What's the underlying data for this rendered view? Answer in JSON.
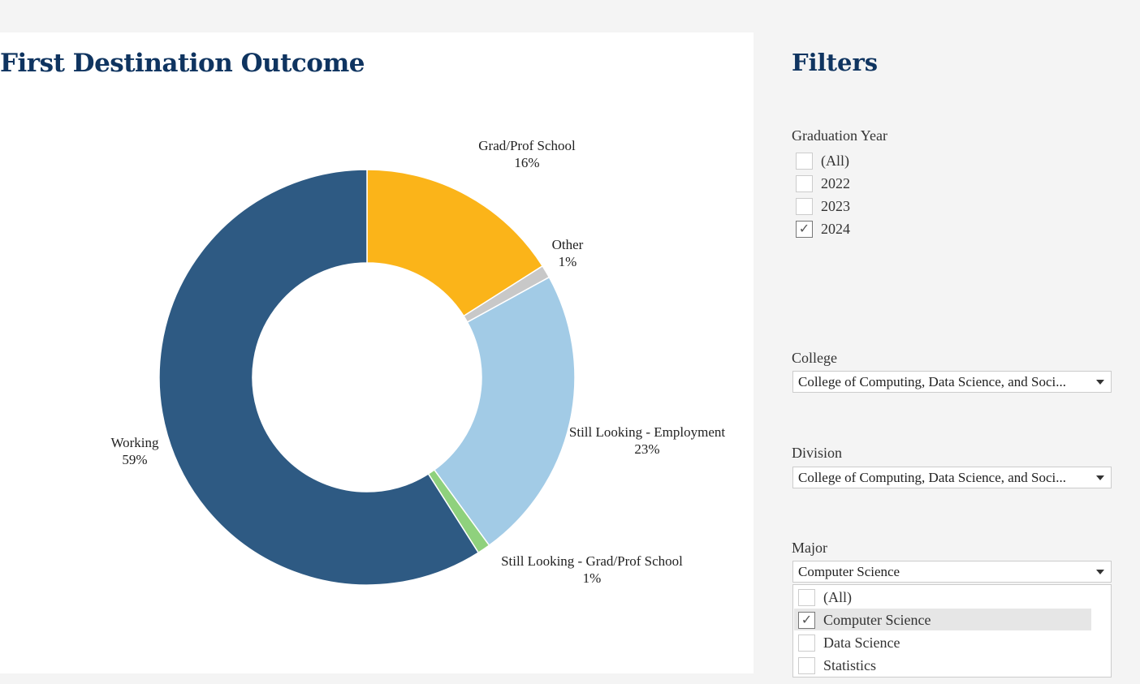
{
  "chart_data": {
    "type": "pie",
    "title": "First Destination Outcome",
    "donut": true,
    "slices": [
      {
        "label": "Grad/Prof School",
        "value": 16,
        "value_label": "16%",
        "color": "#fbb419"
      },
      {
        "label": "Other",
        "value": 1,
        "value_label": "1%",
        "color": "#c8c8c8"
      },
      {
        "label": "Still Looking - Employment",
        "value": 23,
        "value_label": "23%",
        "color": "#a2cbe6"
      },
      {
        "label": "Still Looking - Grad/Prof School",
        "value": 1,
        "value_label": "1%",
        "color": "#8fd17d"
      },
      {
        "label": "Working",
        "value": 59,
        "value_label": "59%",
        "color": "#2e5a83"
      }
    ]
  },
  "filters": {
    "title": "Filters",
    "graduation_year": {
      "label": "Graduation Year",
      "options": [
        {
          "label": "(All)",
          "checked": false
        },
        {
          "label": "2022",
          "checked": false
        },
        {
          "label": "2023",
          "checked": false
        },
        {
          "label": "2024",
          "checked": true
        }
      ]
    },
    "college": {
      "label": "College",
      "value": "College of Computing, Data Science, and Soci..."
    },
    "division": {
      "label": "Division",
      "value": "College of Computing, Data Science, and Soci..."
    },
    "major": {
      "label": "Major",
      "value": "Computer Science",
      "options": [
        {
          "label": "(All)",
          "checked": false
        },
        {
          "label": "Computer Science",
          "checked": true
        },
        {
          "label": "Data Science",
          "checked": false
        },
        {
          "label": "Statistics",
          "checked": false
        }
      ]
    }
  }
}
